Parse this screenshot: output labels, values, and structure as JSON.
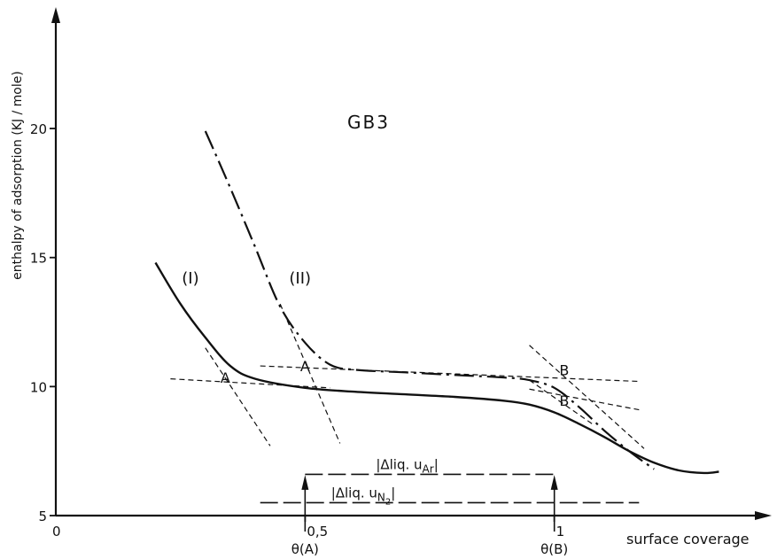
{
  "chart_data": {
    "type": "line",
    "title": "GB3",
    "ylabel": "enthalpy of adsorption (KJ / mole)",
    "xlabel": "surface coverage",
    "xlim": [
      0,
      1.42
    ],
    "ylim": [
      5,
      24.5
    ],
    "x_tick_labels": [
      {
        "value": 0,
        "label": "0"
      },
      {
        "value": 0.5,
        "label": "0,5"
      },
      {
        "value": 1,
        "label": "1"
      }
    ],
    "y_tick_labels": [
      {
        "value": 5,
        "label": "5"
      },
      {
        "value": 10,
        "label": "10"
      },
      {
        "value": 15,
        "label": "15"
      },
      {
        "value": 20,
        "label": "20"
      }
    ],
    "series": [
      {
        "name": "(I)",
        "style": "solid",
        "points": [
          [
            0.2,
            14.8
          ],
          [
            0.25,
            13.2
          ],
          [
            0.3,
            11.9
          ],
          [
            0.35,
            10.8
          ],
          [
            0.4,
            10.3
          ],
          [
            0.5,
            9.95
          ],
          [
            0.6,
            9.8
          ],
          [
            0.7,
            9.7
          ],
          [
            0.8,
            9.6
          ],
          [
            0.9,
            9.45
          ],
          [
            0.95,
            9.3
          ],
          [
            1.0,
            9.0
          ],
          [
            1.05,
            8.55
          ],
          [
            1.1,
            8.05
          ],
          [
            1.15,
            7.5
          ],
          [
            1.2,
            7.05
          ],
          [
            1.25,
            6.75
          ],
          [
            1.3,
            6.65
          ],
          [
            1.33,
            6.7
          ]
        ]
      },
      {
        "name": "(II)",
        "style": "dash-dot",
        "points": [
          [
            0.3,
            19.9
          ],
          [
            0.35,
            17.7
          ],
          [
            0.4,
            15.4
          ],
          [
            0.45,
            13.1
          ],
          [
            0.5,
            11.7
          ],
          [
            0.55,
            10.85
          ],
          [
            0.6,
            10.65
          ],
          [
            0.7,
            10.55
          ],
          [
            0.8,
            10.45
          ],
          [
            0.9,
            10.35
          ],
          [
            0.95,
            10.25
          ],
          [
            1.0,
            9.95
          ],
          [
            1.05,
            9.2
          ],
          [
            1.1,
            8.3
          ],
          [
            1.15,
            7.5
          ],
          [
            1.2,
            6.8
          ]
        ]
      }
    ],
    "annotations": [
      {
        "label": "A",
        "x": 0.34,
        "y": 10.15
      },
      {
        "label": "A",
        "x": 0.5,
        "y": 10.6
      },
      {
        "label": "B",
        "x": 1.02,
        "y": 10.45
      },
      {
        "label": "B",
        "x": 1.02,
        "y": 9.25
      }
    ],
    "tangents": [
      {
        "x1": 0.23,
        "y1": 10.3,
        "x2": 0.55,
        "y2": 9.95
      },
      {
        "x1": 0.3,
        "y1": 11.5,
        "x2": 0.43,
        "y2": 7.7
      },
      {
        "x1": 0.41,
        "y1": 10.8,
        "x2": 1.17,
        "y2": 10.2
      },
      {
        "x1": 0.45,
        "y1": 13.2,
        "x2": 0.57,
        "y2": 7.8
      },
      {
        "x1": 0.95,
        "y1": 9.9,
        "x2": 1.17,
        "y2": 9.1
      },
      {
        "x1": 0.95,
        "y1": 11.6,
        "x2": 1.18,
        "y2": 7.6
      },
      {
        "x1": 0.95,
        "y1": 10.25,
        "x2": 1.08,
        "y2": 8.5
      }
    ],
    "reference_lines": [
      {
        "label": "|Δliq. u_Ar|",
        "label_parts": [
          "|Δliq. u",
          "Ar",
          "|"
        ],
        "x_from": 0.5,
        "x_to": 1.0,
        "y": 6.6
      },
      {
        "label": "|Δliq. u_N2|",
        "label_parts": [
          "|Δliq. u",
          "N",
          "2",
          "|"
        ],
        "x_from": 0.41,
        "x_to": 1.17,
        "y": 5.5
      }
    ],
    "markers": [
      {
        "label": "θ(A)",
        "x": 0.5
      },
      {
        "label": "θ(B)",
        "x": 1.0
      }
    ],
    "curve_labels": [
      {
        "label": "(I)",
        "x": 0.27,
        "y": 14.0
      },
      {
        "label": "(II)",
        "x": 0.49,
        "y": 14.0
      }
    ],
    "grid": false,
    "legend": "none"
  }
}
